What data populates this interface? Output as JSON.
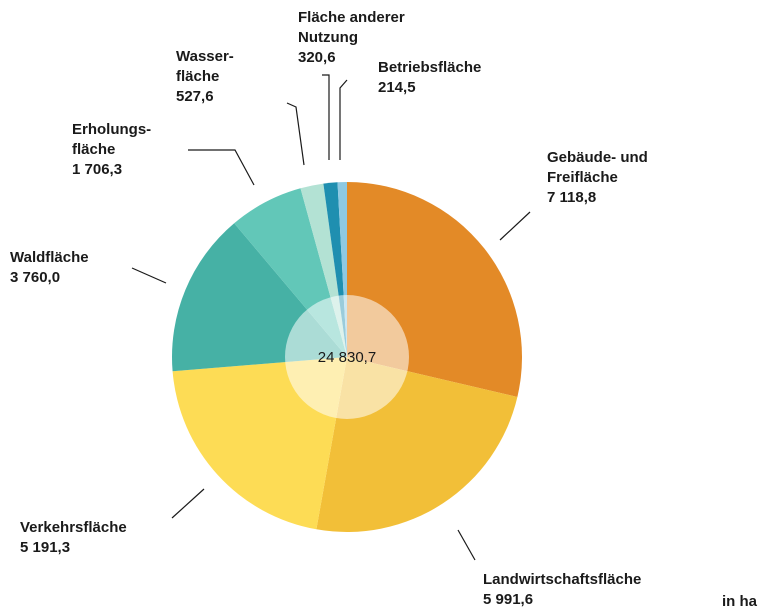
{
  "chart_data": {
    "type": "pie",
    "categories": [
      "Gebäude- und\nFreifläche",
      "Landwirtschaftsfläche",
      "Verkehrsfläche",
      "Waldfläche",
      "Erholungs-\nfläche",
      "Wasser-\nfläche",
      "Fläche anderer\nNutzung",
      "Betriebsfläche"
    ],
    "values": [
      7118.8,
      5991.6,
      5191.3,
      3760.0,
      1706.3,
      527.6,
      320.6,
      214.5
    ],
    "value_labels": [
      "7 118,8",
      "5 991,6",
      "5 191,3",
      "3 760,0",
      "1 706,3",
      "527,6",
      "320,6",
      "214,5"
    ],
    "colors": [
      "#e38a27",
      "#f2bf38",
      "#fddc55",
      "#46b1a5",
      "#62c7b8",
      "#b3e2d4",
      "#1f8fb0",
      "#8ec9e2"
    ],
    "total": 24830.7,
    "total_label": "24 830,7",
    "unit": "in ha"
  }
}
